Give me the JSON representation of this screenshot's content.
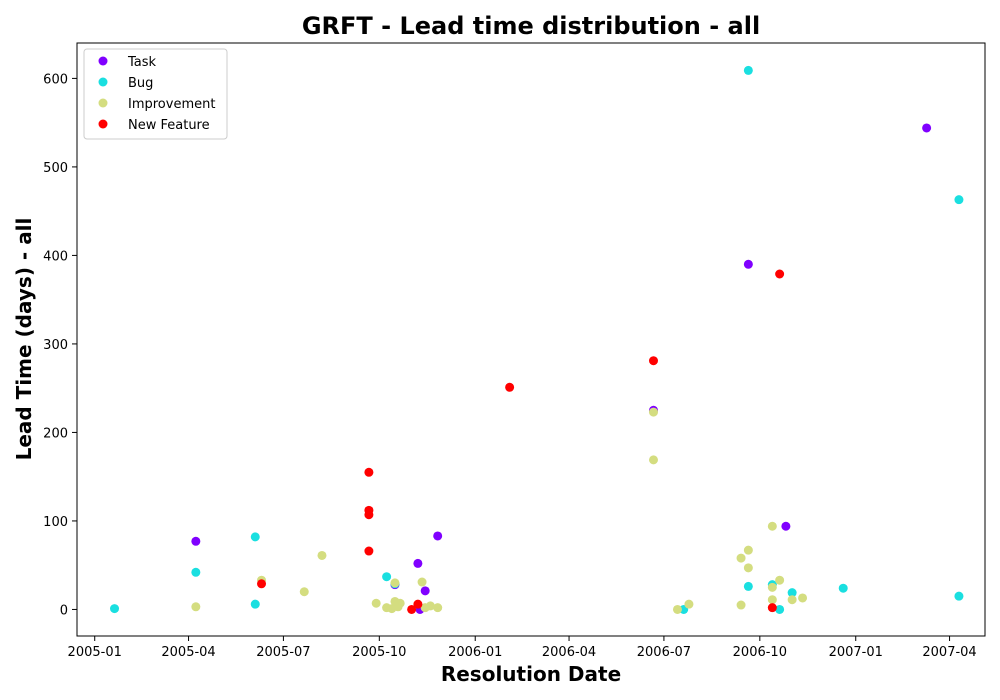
{
  "chart_data": {
    "type": "scatter",
    "title": "GRFT - Lead time distribution - all",
    "xlabel": "Resolution Date",
    "ylabel": "Lead Time (days) - all",
    "x_ticks": [
      "2005-01",
      "2005-04",
      "2005-07",
      "2005-10",
      "2006-01",
      "2006-04",
      "2006-07",
      "2006-10",
      "2007-01",
      "2007-04"
    ],
    "y_ticks": [
      0,
      100,
      200,
      300,
      400,
      500,
      600
    ],
    "xlim": [
      "2004-12-15",
      "2007-05-05"
    ],
    "ylim": [
      -30,
      640
    ],
    "legend_position": "top-left",
    "grid": false,
    "series": [
      {
        "name": "Task",
        "color": "#8000ff",
        "points": [
          {
            "x": "2005-04-08",
            "y": 77
          },
          {
            "x": "2005-10-16",
            "y": 28
          },
          {
            "x": "2005-11-07",
            "y": 52
          },
          {
            "x": "2005-11-09",
            "y": 0
          },
          {
            "x": "2005-11-14",
            "y": 21
          },
          {
            "x": "2005-11-26",
            "y": 83
          },
          {
            "x": "2006-06-21",
            "y": 225
          },
          {
            "x": "2006-09-20",
            "y": 390
          },
          {
            "x": "2006-10-26",
            "y": 94
          },
          {
            "x": "2007-03-10",
            "y": 544
          }
        ]
      },
      {
        "name": "Bug",
        "color": "#1adfe0",
        "points": [
          {
            "x": "2005-01-20",
            "y": 1
          },
          {
            "x": "2005-04-08",
            "y": 42
          },
          {
            "x": "2005-06-04",
            "y": 82
          },
          {
            "x": "2005-06-04",
            "y": 6
          },
          {
            "x": "2005-10-08",
            "y": 37
          },
          {
            "x": "2005-10-16",
            "y": 29
          },
          {
            "x": "2006-07-20",
            "y": 0
          },
          {
            "x": "2006-09-20",
            "y": 609
          },
          {
            "x": "2006-09-20",
            "y": 26
          },
          {
            "x": "2006-10-13",
            "y": 28
          },
          {
            "x": "2006-10-20",
            "y": 0
          },
          {
            "x": "2006-11-01",
            "y": 19
          },
          {
            "x": "2006-12-20",
            "y": 24
          },
          {
            "x": "2007-04-10",
            "y": 463
          },
          {
            "x": "2007-04-10",
            "y": 15
          }
        ]
      },
      {
        "name": "Improvement",
        "color": "#d4dd80",
        "points": [
          {
            "x": "2005-04-08",
            "y": 3
          },
          {
            "x": "2005-06-10",
            "y": 33
          },
          {
            "x": "2005-07-21",
            "y": 20
          },
          {
            "x": "2005-08-07",
            "y": 61
          },
          {
            "x": "2005-09-28",
            "y": 7
          },
          {
            "x": "2005-10-08",
            "y": 2
          },
          {
            "x": "2005-10-13",
            "y": 1
          },
          {
            "x": "2005-10-16",
            "y": 30
          },
          {
            "x": "2005-10-16",
            "y": 9
          },
          {
            "x": "2005-10-19",
            "y": 3
          },
          {
            "x": "2005-10-21",
            "y": 7
          },
          {
            "x": "2005-11-11",
            "y": 31
          },
          {
            "x": "2005-11-14",
            "y": 2
          },
          {
            "x": "2005-11-19",
            "y": 4
          },
          {
            "x": "2005-11-26",
            "y": 2
          },
          {
            "x": "2006-06-21",
            "y": 223
          },
          {
            "x": "2006-06-21",
            "y": 169
          },
          {
            "x": "2006-07-14",
            "y": 0
          },
          {
            "x": "2006-07-25",
            "y": 6
          },
          {
            "x": "2006-09-13",
            "y": 58
          },
          {
            "x": "2006-09-13",
            "y": 5
          },
          {
            "x": "2006-09-20",
            "y": 67
          },
          {
            "x": "2006-09-20",
            "y": 47
          },
          {
            "x": "2006-10-13",
            "y": 94
          },
          {
            "x": "2006-10-13",
            "y": 25
          },
          {
            "x": "2006-10-13",
            "y": 11
          },
          {
            "x": "2006-10-20",
            "y": 33
          },
          {
            "x": "2006-11-01",
            "y": 11
          },
          {
            "x": "2006-11-11",
            "y": 13
          }
        ]
      },
      {
        "name": "New Feature",
        "color": "#ff0000",
        "points": [
          {
            "x": "2005-06-10",
            "y": 29
          },
          {
            "x": "2005-09-21",
            "y": 155
          },
          {
            "x": "2005-09-21",
            "y": 112
          },
          {
            "x": "2005-09-21",
            "y": 107
          },
          {
            "x": "2005-09-21",
            "y": 66
          },
          {
            "x": "2005-11-01",
            "y": 0
          },
          {
            "x": "2005-11-07",
            "y": 6
          },
          {
            "x": "2006-02-03",
            "y": 251
          },
          {
            "x": "2006-06-21",
            "y": 281
          },
          {
            "x": "2006-10-13",
            "y": 2
          },
          {
            "x": "2006-10-20",
            "y": 379
          }
        ]
      }
    ]
  }
}
